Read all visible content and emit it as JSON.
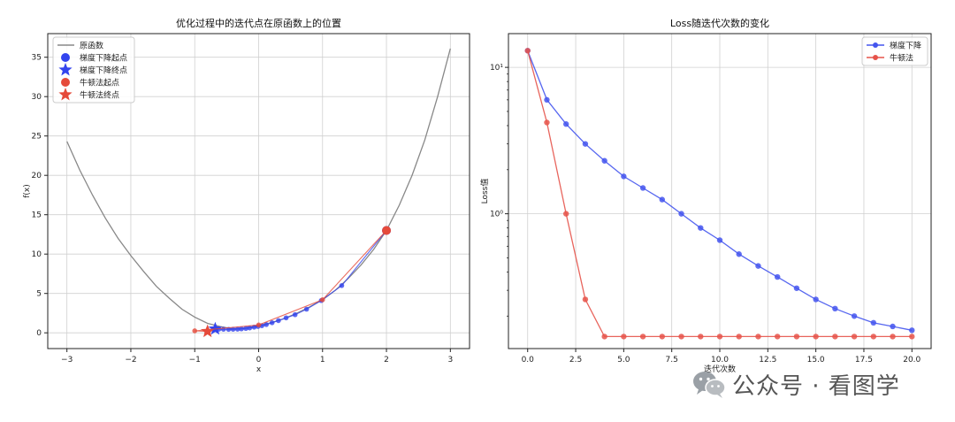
{
  "chart_data": [
    {
      "type": "line",
      "title": "优化过程中的迭代点在原函数上的位置",
      "xlabel": "x",
      "ylabel": "f(x)",
      "xlim": [
        -3.3,
        3.3
      ],
      "ylim": [
        -2.0,
        38.0
      ],
      "xticks": [
        -3,
        -2,
        -1,
        0,
        1,
        2,
        3
      ],
      "yticks": [
        0,
        5,
        10,
        15,
        20,
        25,
        30,
        35
      ],
      "xtick_labels": [
        "−3",
        "−2",
        "−1",
        "0",
        "1",
        "2",
        "3"
      ],
      "ytick_labels": [
        "0",
        "5",
        "10",
        "15",
        "20",
        "25",
        "30",
        "35"
      ],
      "grid": true,
      "legend_position": "top-left",
      "function": {
        "name": "原函数",
        "color": "#888888",
        "x": [
          -3.0,
          -2.8,
          -2.6,
          -2.4,
          -2.2,
          -2.0,
          -1.8,
          -1.6,
          -1.4,
          -1.2,
          -1.0,
          -0.8,
          -0.6,
          -0.4,
          -0.2,
          0.0,
          0.2,
          0.4,
          0.6,
          0.8,
          1.0,
          1.2,
          1.4,
          1.6,
          1.8,
          2.0,
          2.2,
          2.4,
          2.6,
          2.8,
          3.0
        ],
        "y": [
          24.3,
          20.7,
          17.5,
          14.6,
          12.0,
          9.8,
          7.8,
          5.9,
          4.4,
          3.0,
          2.0,
          1.2,
          0.8,
          0.5,
          0.6,
          0.9,
          1.3,
          1.8,
          2.5,
          3.3,
          4.2,
          5.4,
          6.9,
          8.6,
          10.6,
          13.0,
          16.2,
          20.0,
          24.5,
          30.0,
          36.1
        ]
      },
      "series": [
        {
          "name": "梯度下降",
          "color": "#3344ee",
          "x": [
            2.0,
            1.3,
            0.98,
            0.75,
            0.57,
            0.43,
            0.31,
            0.21,
            0.12,
            0.05,
            -0.01,
            -0.07,
            -0.14,
            -0.2,
            -0.27,
            -0.33,
            -0.4,
            -0.47,
            -0.55,
            -0.62,
            -0.68
          ],
          "y": [
            13.0,
            6.0,
            4.1,
            3.0,
            2.3,
            1.9,
            1.55,
            1.28,
            1.05,
            0.9,
            0.8,
            0.72,
            0.62,
            0.56,
            0.5,
            0.47,
            0.45,
            0.44,
            0.45,
            0.47,
            0.5
          ]
        },
        {
          "name": "牛顿法",
          "color": "#e54a3a",
          "x": [
            2.0,
            1.0,
            0.0,
            -1.0,
            -0.8,
            -0.8
          ],
          "y": [
            13.0,
            4.2,
            1.0,
            0.25,
            0.18,
            0.18
          ]
        }
      ],
      "legend": [
        "原函数",
        "梯度下降起点",
        "梯度下降终点",
        "牛顿法起点",
        "牛顿法终点"
      ]
    },
    {
      "type": "line",
      "title": "Loss随迭代次数的变化",
      "xlabel": "迭代次数",
      "ylabel": "Loss值",
      "yscale": "log",
      "xlim": [
        -1.0,
        21.0
      ],
      "ylim": [
        0.12,
        17.0
      ],
      "xticks": [
        0.0,
        2.5,
        5.0,
        7.5,
        10.0,
        12.5,
        15.0,
        17.5,
        20.0
      ],
      "xtick_labels": [
        "0.0",
        "2.5",
        "5.0",
        "7.5",
        "10.0",
        "12.5",
        "15.0",
        "17.5",
        "20.0"
      ],
      "yticks": [
        1,
        10
      ],
      "ytick_labels": [
        "10⁰",
        "10¹"
      ],
      "grid": true,
      "legend_position": "top-right",
      "x": [
        0,
        1,
        2,
        3,
        4,
        5,
        6,
        7,
        8,
        9,
        10,
        11,
        12,
        13,
        14,
        15,
        16,
        17,
        18,
        19,
        20
      ],
      "series": [
        {
          "name": "梯度下降",
          "color": "#4455ee",
          "values": [
            13.0,
            6.0,
            4.1,
            3.0,
            2.3,
            1.8,
            1.5,
            1.25,
            1.0,
            0.8,
            0.66,
            0.53,
            0.44,
            0.37,
            0.31,
            0.26,
            0.225,
            0.2,
            0.18,
            0.17,
            0.16
          ]
        },
        {
          "name": "牛顿法",
          "color": "#e6534a",
          "values": [
            13.0,
            4.2,
            1.0,
            0.26,
            0.145,
            0.145,
            0.145,
            0.145,
            0.145,
            0.145,
            0.145,
            0.145,
            0.145,
            0.145,
            0.145,
            0.145,
            0.145,
            0.145,
            0.145,
            0.145,
            0.145
          ]
        }
      ]
    }
  ],
  "footer": {
    "text": "公众号 · 看图学",
    "icon": "wechat-icon",
    "color": "#4a4a4a"
  }
}
